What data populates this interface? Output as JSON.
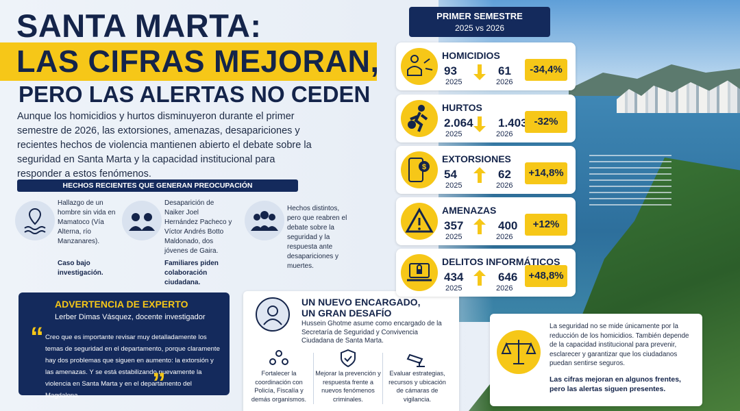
{
  "header": {
    "title_line1": "SANTA MARTA:",
    "title_line2": "LAS CIFRAS MEJORAN,",
    "title_line3": "PERO LAS ALERTAS NO CEDEN",
    "intro": "Aunque los homicidios y hurtos disminuyeron durante el primer semestre de 2026, las extorsiones, amenazas, desapariciones y recientes hechos de violencia mantienen abierto el debate sobre la seguridad en Santa Marta y la capacidad institucional para responder a estos fenómenos."
  },
  "recent_events": {
    "heading": "HECHOS RECIENTES QUE GENERAN PREOCUPACIÓN",
    "items": [
      {
        "text": "Hallazgo de un hombre sin vida en Mamatoco (Vía Alterna, río Manzanares).",
        "note": "Caso bajo investigación."
      },
      {
        "text": "Desaparición de Naiker Joel Hernández Pacheco y Víctor Andrés Botto Maldonado, dos jóvenes de Gaira.",
        "note": "Familiares piden colaboración ciudadana."
      },
      {
        "text": "Hechos distintos, pero que reabren el debate sobre la seguridad y la respuesta ante desapariciones y muertes.",
        "note": null
      }
    ]
  },
  "expert": {
    "heading": "ADVERTENCIA DE EXPERTO",
    "author": "Lerber Dimas Vásquez, docente investigador",
    "quote_open": "“",
    "quote": "Creo que es importante revisar muy detalladamente los temas de seguridad en el departamento, porque claramente hay dos problemas que siguen en aumento: la extorsión y las amenazas. Y se está estabilizando nuevamente la violencia en Santa Marta y en el departamento del Magdalena.",
    "quote_close": "”"
  },
  "new_official": {
    "title_line1": "UN NUEVO ENCARGADO,",
    "title_line2": "UN GRAN DESAFÍO",
    "text": "Hussein Ghotme asume como encargado de la Secretaría de Seguridad y Convivencia Ciudadana de Santa Marta.",
    "actions": [
      "Fortalecer la coordinación con Policía, Fiscalía y demás organismos.",
      "Mejorar la prevención y respuesta frente a nuevos fenómenos criminales.",
      "Evaluar estrategias, recursos y ubicación de cámaras de vigilancia."
    ]
  },
  "comparison": {
    "heading": "PRIMER SEMESTRE",
    "subheading": "2025 vs 2026",
    "rows": [
      {
        "label": "HOMICIDIOS",
        "value_a": "93",
        "year_a": "2025",
        "value_b": "61",
        "year_b": "2026",
        "change": "-34,4%"
      },
      {
        "label": "HURTOS",
        "value_a": "2.064",
        "year_a": "2025",
        "value_b": "1.403",
        "year_b": "2026",
        "change": "-32%"
      },
      {
        "label": "EXTORSIONES",
        "value_a": "54",
        "year_a": "2025",
        "value_b": "62",
        "year_b": "2026",
        "change": "+14,8%"
      },
      {
        "label": "AMENAZAS",
        "value_a": "357",
        "year_a": "2025",
        "value_b": "400",
        "year_b": "2026",
        "change": "+12%"
      },
      {
        "label": "DELITOS INFORMÁTICOS",
        "value_a": "434",
        "year_a": "2025",
        "value_b": "646",
        "year_b": "2026",
        "change": "+48,8%"
      }
    ]
  },
  "closing": {
    "text": "La seguridad no se mide únicamente por la reducción de los homicidios. También depende de la capacidad institucional para prevenir, esclarecer y garantizar que los ciudadanos puedan sentirse seguros.",
    "highlight": "Las cifras mejoran en algunos frentes, pero las alertas siguen presentes."
  }
}
